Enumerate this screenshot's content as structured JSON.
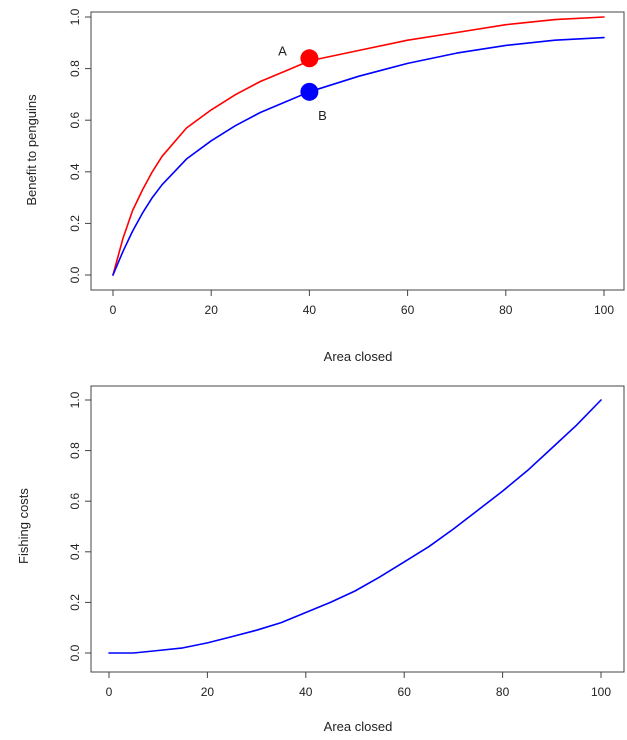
{
  "chart_data": [
    {
      "type": "line",
      "xlabel": "Area closed",
      "ylabel": "Benefit to penguins",
      "xlim": [
        0,
        100
      ],
      "ylim": [
        0,
        1.0
      ],
      "x_ticks": [
        "0",
        "20",
        "40",
        "60",
        "80",
        "100"
      ],
      "y_ticks": [
        "0.0",
        "0.2",
        "0.4",
        "0.6",
        "0.8",
        "1.0"
      ],
      "grid": false,
      "series": [
        {
          "color": "#ff0000",
          "x": [
            0,
            2,
            4,
            6,
            8,
            10,
            15,
            20,
            25,
            30,
            35,
            40,
            50,
            60,
            70,
            80,
            90,
            100
          ],
          "y": [
            0.0,
            0.14,
            0.25,
            0.33,
            0.4,
            0.46,
            0.57,
            0.64,
            0.7,
            0.75,
            0.79,
            0.83,
            0.87,
            0.91,
            0.94,
            0.97,
            0.99,
            1.0
          ]
        },
        {
          "color": "#0000ff",
          "x": [
            0,
            2,
            4,
            6,
            8,
            10,
            15,
            20,
            25,
            30,
            35,
            40,
            50,
            60,
            70,
            80,
            90,
            100
          ],
          "y": [
            0.0,
            0.09,
            0.17,
            0.24,
            0.3,
            0.35,
            0.45,
            0.52,
            0.58,
            0.63,
            0.67,
            0.71,
            0.77,
            0.82,
            0.86,
            0.89,
            0.91,
            0.92
          ]
        }
      ],
      "points": [
        {
          "label": "A",
          "x": 40,
          "y": 0.84,
          "color": "#ff0000",
          "label_side": "left"
        },
        {
          "label": "B",
          "x": 40,
          "y": 0.71,
          "color": "#0000ff",
          "label_side": "below-right"
        }
      ]
    },
    {
      "type": "line",
      "xlabel": "Area closed",
      "ylabel": "Fishing costs",
      "xlim": [
        0,
        100
      ],
      "ylim": [
        0,
        1.0
      ],
      "x_ticks": [
        "0",
        "20",
        "40",
        "60",
        "80",
        "100"
      ],
      "y_ticks": [
        "0.0",
        "0.2",
        "0.4",
        "0.6",
        "0.8",
        "1.0"
      ],
      "grid": false,
      "series": [
        {
          "color": "#0000ff",
          "x": [
            0,
            5,
            10,
            15,
            20,
            25,
            30,
            35,
            40,
            45,
            50,
            55,
            60,
            65,
            70,
            75,
            80,
            85,
            90,
            95,
            100
          ],
          "y": [
            0.0,
            0.0,
            0.01,
            0.02,
            0.04,
            0.065,
            0.09,
            0.12,
            0.16,
            0.2,
            0.245,
            0.3,
            0.36,
            0.42,
            0.49,
            0.565,
            0.64,
            0.72,
            0.81,
            0.9,
            1.0
          ]
        }
      ]
    }
  ]
}
